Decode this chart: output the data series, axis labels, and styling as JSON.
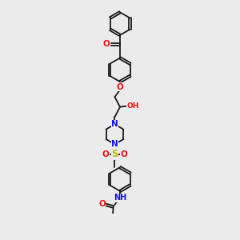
{
  "bg_color": "#ebebeb",
  "bond_color": "#1a1a1a",
  "o_color": "#ee1111",
  "n_color": "#1111ee",
  "s_color": "#bbbb00",
  "figsize": [
    3.0,
    3.0
  ],
  "dpi": 100,
  "xlim": [
    0,
    10
  ],
  "ylim": [
    0,
    10
  ]
}
